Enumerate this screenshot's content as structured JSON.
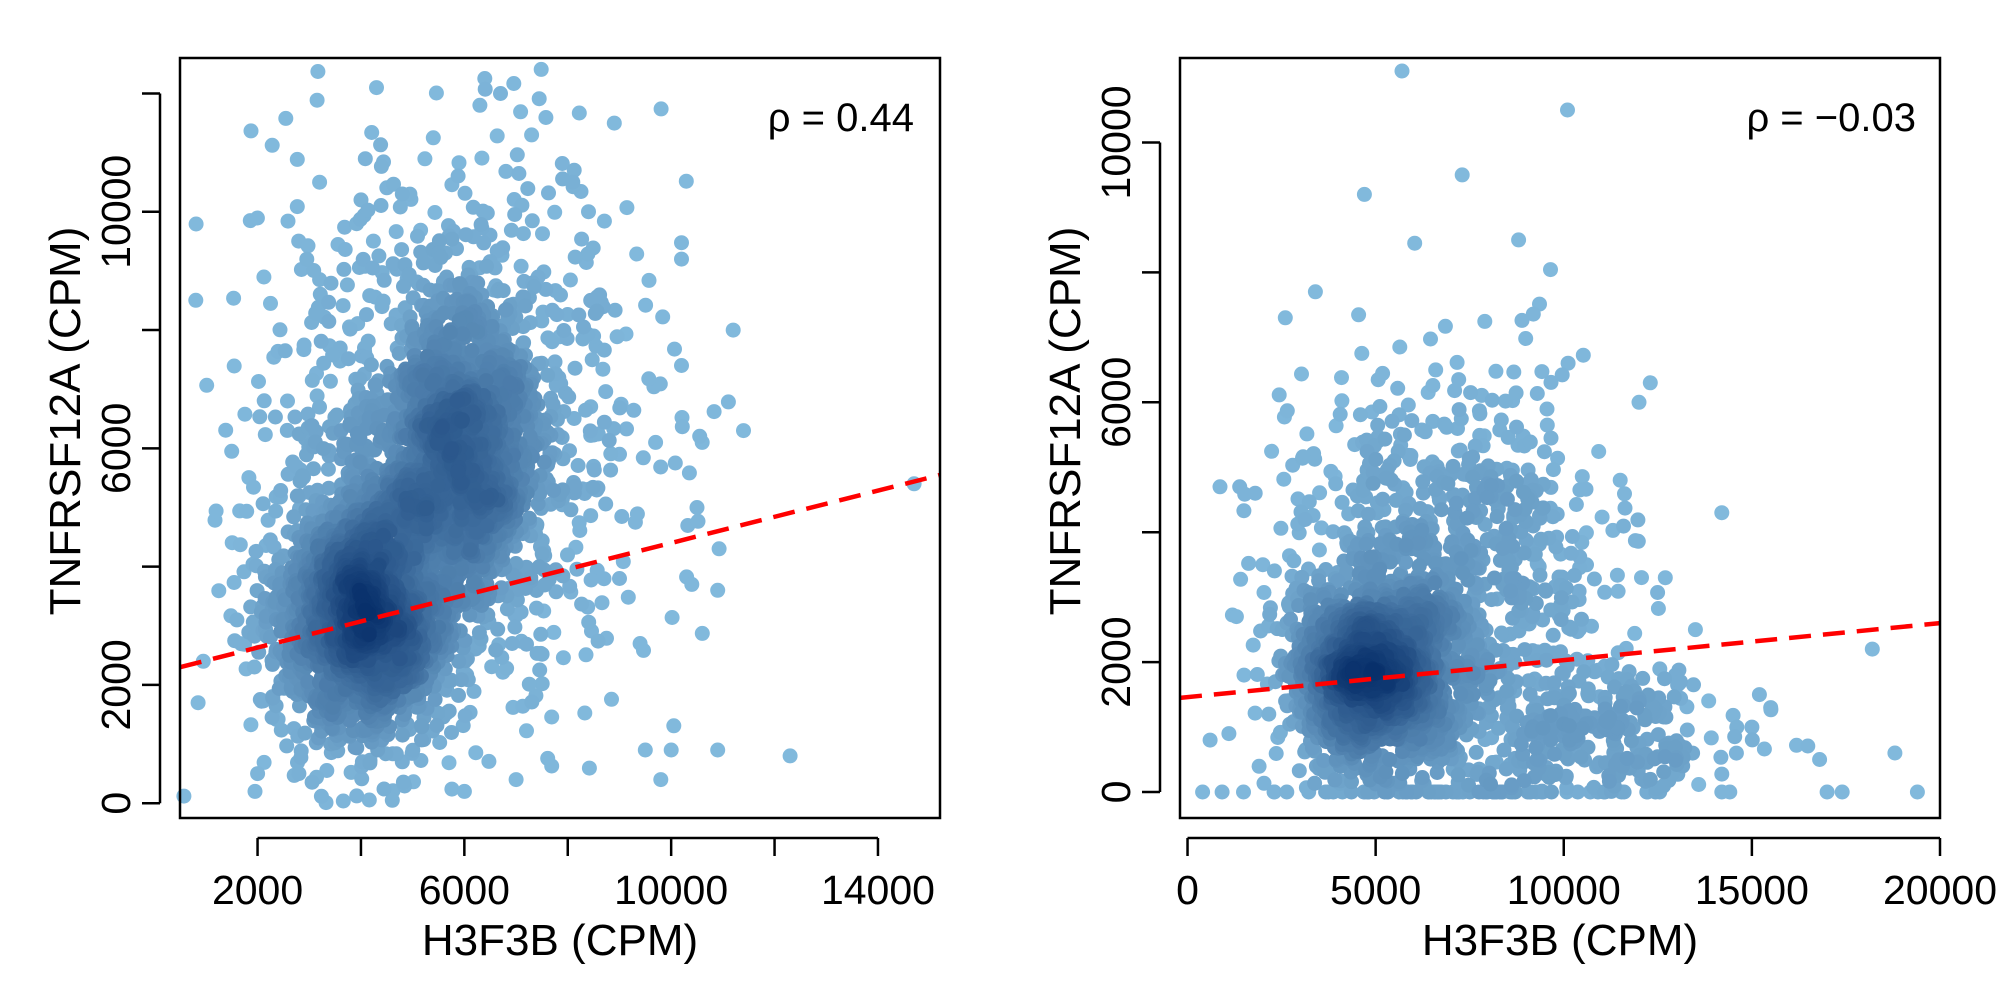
{
  "chart_data": [
    {
      "type": "scatter",
      "title": "",
      "xlabel": "H3F3B (CPM)",
      "ylabel": "TNFRSF12A (CPM)",
      "xlim": [
        500,
        15200
      ],
      "ylim": [
        -250,
        12600
      ],
      "x_ticks": [
        2000,
        4000,
        6000,
        8000,
        10000,
        12000,
        14000
      ],
      "x_tick_labels": [
        "2000",
        "",
        "6000",
        "",
        "10000",
        "",
        "14000"
      ],
      "y_ticks": [
        0,
        2000,
        4000,
        6000,
        8000,
        10000,
        12000
      ],
      "y_tick_labels": [
        "0",
        "2000",
        "",
        "6000",
        "",
        "10000",
        ""
      ],
      "annotation": "ρ = 0.44",
      "annotation_position": "top-right",
      "trend_line": {
        "style": "dashed",
        "color": "#FF0000",
        "x": [
          500,
          15200
        ],
        "y": [
          2300,
          5550
        ]
      },
      "density_clusters": [
        {
          "cx": 4100,
          "cy": 3200,
          "sx": 900,
          "sy": 1100,
          "n": 1700
        },
        {
          "cx": 5900,
          "cy": 5900,
          "sx": 850,
          "sy": 1350,
          "n": 1300
        },
        {
          "cx": 5800,
          "cy": 6500,
          "sx": 2000,
          "sy": 2400,
          "n": 800
        }
      ],
      "points": [
        [
          2250,
          8450
        ],
        [
          1500,
          5950
        ],
        [
          850,
          1700
        ],
        [
          950,
          2400
        ],
        [
          1600,
          3100
        ],
        [
          1950,
          200
        ],
        [
          2000,
          500
        ],
        [
          4300,
          12100
        ],
        [
          6700,
          12000
        ],
        [
          6300,
          11800
        ],
        [
          8900,
          11500
        ],
        [
          5400,
          11250
        ],
        [
          7300,
          11300
        ],
        [
          3200,
          10500
        ],
        [
          4000,
          10200
        ],
        [
          4800,
          10300
        ],
        [
          10200,
          9200
        ],
        [
          11200,
          8000
        ],
        [
          10200,
          7400
        ],
        [
          11400,
          6300
        ],
        [
          14700,
          5400
        ],
        [
          12300,
          800
        ],
        [
          10900,
          900
        ],
        [
          9500,
          900
        ],
        [
          10000,
          900
        ],
        [
          9800,
          400
        ],
        [
          7000,
          400
        ],
        [
          6000,
          200
        ],
        [
          2800,
          500
        ],
        [
          4800,
          700
        ],
        [
          10900,
          3600
        ],
        [
          10400,
          3700
        ],
        [
          9400,
          2700
        ],
        [
          9000,
          5900
        ],
        [
          8500,
          7900
        ],
        [
          9700,
          6100
        ],
        [
          10500,
          5000
        ],
        [
          10600,
          6100
        ],
        [
          9000,
          3800
        ]
      ],
      "colors": {
        "points_light": "#84BCDF",
        "points_dark": "#08306B",
        "trend": "#FF0000"
      }
    },
    {
      "type": "scatter",
      "title": "",
      "xlabel": "H3F3B (CPM)",
      "ylabel": "TNFRSF12A (CPM)",
      "xlim": [
        -200,
        20000
      ],
      "ylim": [
        -400,
        11300
      ],
      "x_ticks": [
        0,
        5000,
        10000,
        15000,
        20000
      ],
      "x_tick_labels": [
        "0",
        "5000",
        "10000",
        "15000",
        "20000"
      ],
      "y_ticks": [
        0,
        2000,
        4000,
        6000,
        8000,
        10000
      ],
      "y_tick_labels": [
        "0",
        "2000",
        "",
        "6000",
        "",
        "10000"
      ],
      "annotation": "ρ = −0.03",
      "annotation_position": "top-right",
      "trend_line": {
        "style": "dashed",
        "color": "#FF0000",
        "x": [
          -200,
          20000
        ],
        "y": [
          1450,
          2600
        ]
      },
      "density_clusters": [
        {
          "cx": 4900,
          "cy": 1800,
          "sx": 1100,
          "sy": 700,
          "n": 1100
        },
        {
          "cx": 6500,
          "cy": 2400,
          "sx": 2100,
          "sy": 1600,
          "n": 800
        },
        {
          "cx": 7000,
          "cy": 4300,
          "sx": 2100,
          "sy": 1300,
          "n": 250
        },
        {
          "cx": 11200,
          "cy": 900,
          "sx": 1800,
          "sy": 550,
          "n": 250
        }
      ],
      "points": [
        [
          5700,
          11100
        ],
        [
          10100,
          10500
        ],
        [
          4700,
          9200
        ],
        [
          7300,
          9500
        ],
        [
          8800,
          8500
        ],
        [
          3400,
          7700
        ],
        [
          2600,
          7300
        ],
        [
          12300,
          6300
        ],
        [
          14200,
          4300
        ],
        [
          1800,
          4600
        ],
        [
          18200,
          2200
        ],
        [
          15500,
          1300
        ],
        [
          15200,
          1500
        ],
        [
          16800,
          500
        ],
        [
          17400,
          0
        ],
        [
          17000,
          0
        ],
        [
          18800,
          600
        ],
        [
          19400,
          0
        ],
        [
          14600,
          1000
        ],
        [
          14200,
          0
        ],
        [
          15000,
          1000
        ],
        [
          13500,
          2500
        ],
        [
          400,
          0
        ],
        [
          600,
          800
        ],
        [
          1300,
          2700
        ],
        [
          1500,
          1800
        ],
        [
          1100,
          900
        ],
        [
          2000,
          3500
        ],
        [
          2300,
          0
        ],
        [
          12000,
          6000
        ],
        [
          11500,
          4800
        ],
        [
          12700,
          3300
        ],
        [
          13100,
          1700
        ]
      ],
      "colors": {
        "points_light": "#84BCDF",
        "points_dark": "#08306B",
        "trend": "#FF0000"
      }
    }
  ]
}
